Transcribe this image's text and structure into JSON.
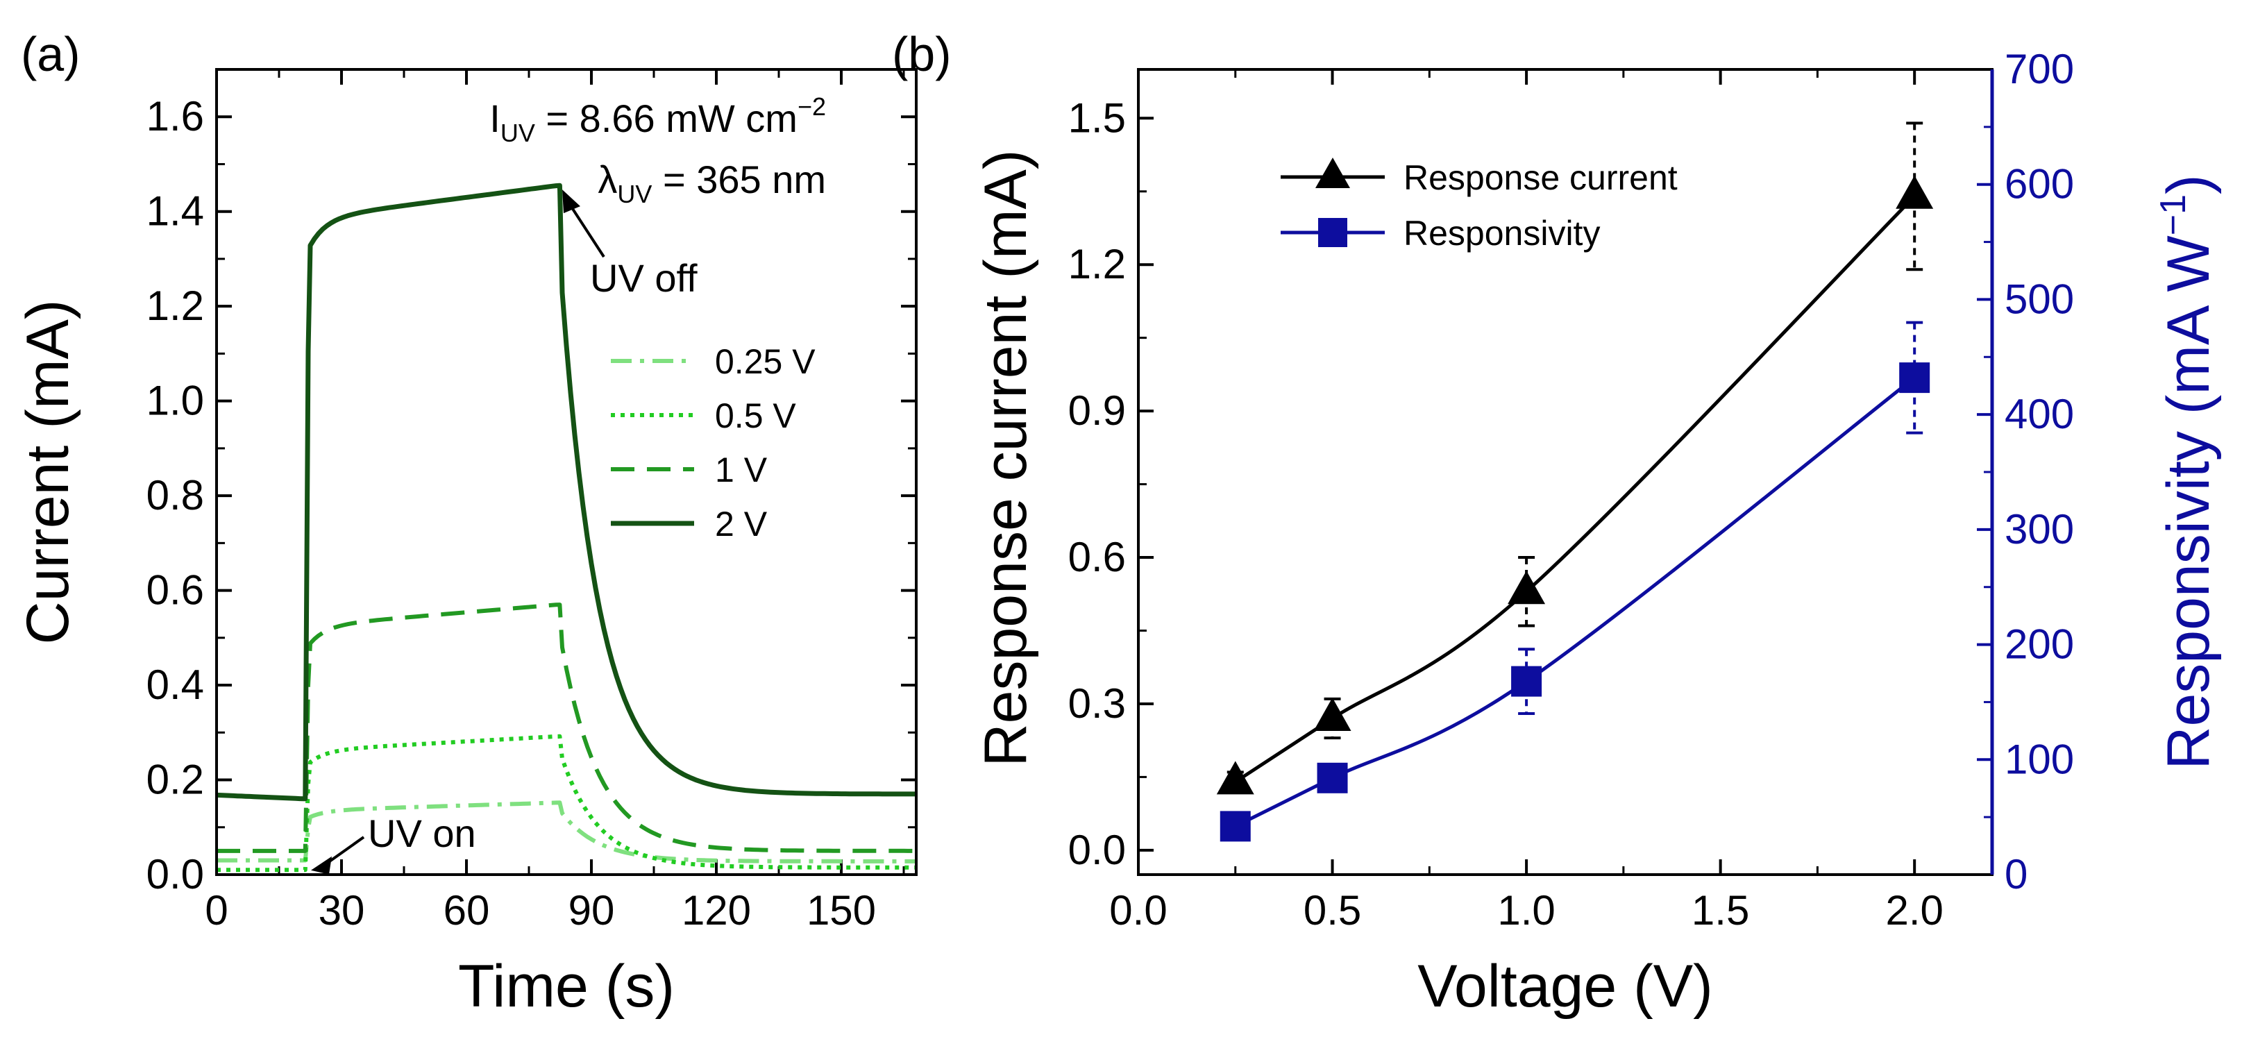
{
  "chart_data": [
    {
      "panel": "(a)",
      "type": "line",
      "xlabel": "Time (s)",
      "ylabel": "Current (mA)",
      "xlim": [
        0,
        168
      ],
      "ylim": [
        0,
        1.7
      ],
      "xticks": [
        "0",
        "30",
        "60",
        "90",
        "120",
        "150"
      ],
      "yticks": [
        "0.0",
        "0.2",
        "0.4",
        "0.6",
        "0.8",
        "1.0",
        "1.2",
        "1.4",
        "1.6"
      ],
      "uv_on_time": 21,
      "uv_off_time": 82,
      "annotations": {
        "intensity_prefix": "I",
        "intensity_sub": "UV",
        "intensity_value": " = 8.66 mW cm",
        "intensity_exp": "−2",
        "wavelength_prefix": "λ",
        "wavelength_sub": "UV",
        "wavelength_value": " = 365 nm",
        "uv_off": "UV off",
        "uv_on": "UV on"
      },
      "series": [
        {
          "name": "0.25 V",
          "style": "dashdot",
          "color": "#7fe07f",
          "dark": 0.03,
          "on_start": 0.115,
          "plateau": 0.152,
          "tail": 0.028
        },
        {
          "name": "0.5 V",
          "style": "dotted",
          "color": "#22cc22",
          "dark": 0.01,
          "on_start": 0.225,
          "plateau": 0.292,
          "tail": 0.015
        },
        {
          "name": "1 V",
          "style": "dashed",
          "color": "#229922",
          "dark": 0.05,
          "on_start": 0.47,
          "plateau": 0.57,
          "tail": 0.05
        },
        {
          "name": "2 V",
          "style": "solid",
          "color": "#145214",
          "dark": 0.165,
          "on_start": 1.3,
          "plateau": 1.455,
          "tail": 0.17
        }
      ]
    },
    {
      "panel": "(b)",
      "type": "line",
      "xlabel": "Voltage (V)",
      "ylabel": "Response current (mA)",
      "y2label_base": "Responsivity (mA W",
      "y2label_exp": "−1",
      "y2label_close": ")",
      "xlim": [
        0,
        2.2
      ],
      "ylim": [
        -0.05,
        1.6
      ],
      "y2lim": [
        0,
        700
      ],
      "xticks": [
        "0.0",
        "0.5",
        "1.0",
        "1.5",
        "2.0"
      ],
      "yticks": [
        "0.0",
        "0.3",
        "0.6",
        "0.9",
        "1.2",
        "1.5"
      ],
      "y2ticks": [
        "0",
        "100",
        "200",
        "300",
        "400",
        "500",
        "600",
        "700"
      ],
      "x": [
        0.25,
        0.5,
        1.0,
        2.0
      ],
      "series": [
        {
          "name": "Response current",
          "axis": "left",
          "marker": "triangle",
          "color": "#000000",
          "values": [
            0.14,
            0.27,
            0.53,
            1.34
          ],
          "err": [
            0.02,
            0.04,
            0.07,
            0.15
          ]
        },
        {
          "name": "Responsivity",
          "axis": "right",
          "marker": "square",
          "color": "#0d0d9e",
          "values": [
            42,
            84,
            168,
            432
          ],
          "err": [
            5,
            10,
            28,
            48
          ]
        }
      ]
    }
  ]
}
